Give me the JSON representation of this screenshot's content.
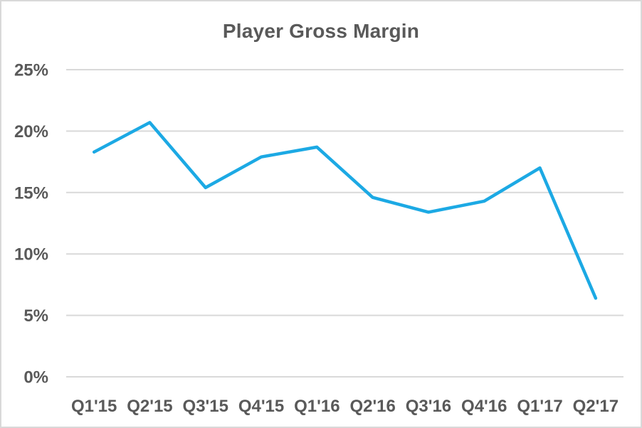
{
  "chart_data": {
    "type": "line",
    "title": "Player Gross Margin",
    "categories": [
      "Q1'15",
      "Q2'15",
      "Q3'15",
      "Q4'15",
      "Q1'16",
      "Q2'16",
      "Q3'16",
      "Q4'16",
      "Q1'17",
      "Q2'17"
    ],
    "series": [
      {
        "name": "Player Gross Margin",
        "values": [
          18.3,
          20.7,
          15.4,
          17.9,
          18.7,
          14.6,
          13.4,
          14.3,
          17.0,
          6.4
        ]
      }
    ],
    "xlabel": "",
    "ylabel": "",
    "ylim": [
      0,
      25
    ],
    "y_tick_values": [
      0,
      5,
      10,
      15,
      20,
      25
    ],
    "y_tick_labels": [
      "0%",
      "5%",
      "10%",
      "15%",
      "20%",
      "25%"
    ],
    "grid": true,
    "legend": false,
    "colors": {
      "line": "#1CA9E4",
      "grid": "#D9D9D9",
      "text": "#595959",
      "border": "#D9D9D9",
      "background": "#FFFFFF"
    }
  }
}
